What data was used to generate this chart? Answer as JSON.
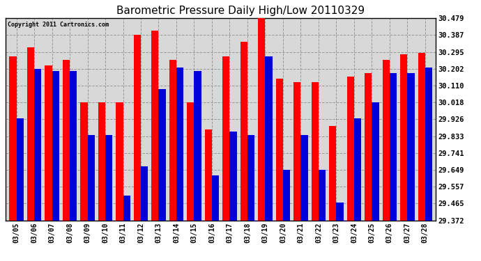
{
  "title": "Barometric Pressure Daily High/Low 20110329",
  "copyright": "Copyright 2011 Cartronics.com",
  "dates": [
    "03/05",
    "03/06",
    "03/07",
    "03/08",
    "03/09",
    "03/10",
    "03/11",
    "03/12",
    "03/13",
    "03/14",
    "03/15",
    "03/16",
    "03/17",
    "03/18",
    "03/19",
    "03/20",
    "03/21",
    "03/22",
    "03/23",
    "03/24",
    "03/25",
    "03/26",
    "03/27",
    "03/28"
  ],
  "highs": [
    30.27,
    30.32,
    30.22,
    30.25,
    30.02,
    30.02,
    30.02,
    30.39,
    30.41,
    30.25,
    30.02,
    29.87,
    30.27,
    30.35,
    30.48,
    30.15,
    30.13,
    30.13,
    29.89,
    30.16,
    30.18,
    30.25,
    30.28,
    30.29
  ],
  "lows": [
    29.93,
    30.2,
    30.19,
    30.19,
    29.84,
    29.84,
    29.51,
    29.67,
    30.09,
    30.21,
    30.19,
    29.62,
    29.86,
    29.84,
    30.27,
    29.65,
    29.84,
    29.65,
    29.47,
    29.93,
    30.02,
    30.18,
    30.18,
    30.21
  ],
  "high_color": "#ff0000",
  "low_color": "#0000dd",
  "bg_color": "#ffffff",
  "plot_bg_color": "#d8d8d8",
  "grid_color": "#999999",
  "yticks": [
    29.372,
    29.465,
    29.557,
    29.649,
    29.741,
    29.833,
    29.926,
    30.018,
    30.11,
    30.202,
    30.295,
    30.387,
    30.479
  ],
  "ylim_min": 29.372,
  "ylim_max": 30.479,
  "bar_width": 0.4
}
